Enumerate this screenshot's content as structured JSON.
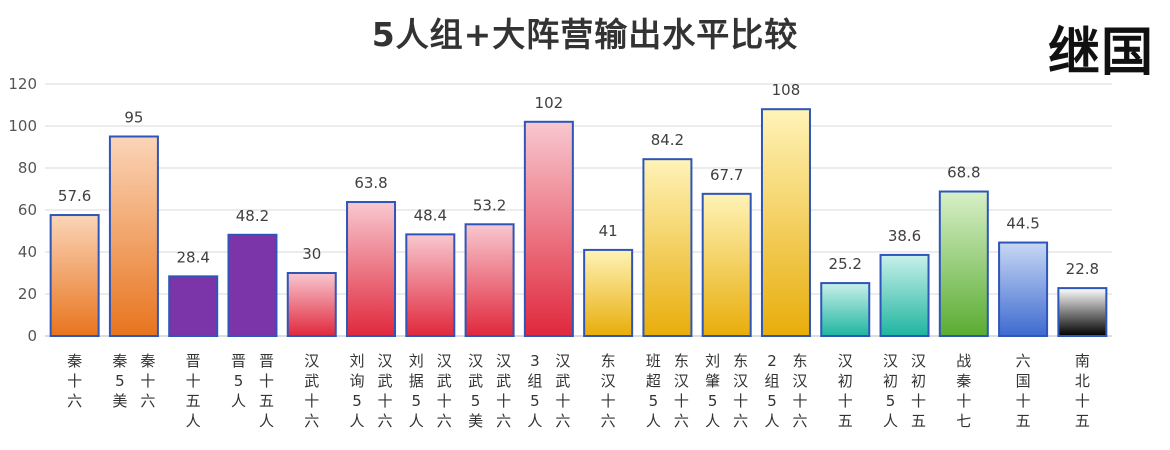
{
  "header": {
    "title": "5人组+大阵营输出水平比较",
    "corner_mark": "继国"
  },
  "chart_data": {
    "type": "bar",
    "title": "5人组+大阵营输出水平比较",
    "xlabel": "",
    "ylabel": "",
    "ylim": [
      0,
      120
    ],
    "yticks": [
      0,
      20,
      40,
      60,
      80,
      100,
      120
    ],
    "grid": true,
    "legend": "none",
    "categories": [
      [
        "秦十六"
      ],
      [
        "秦5美",
        "秦十六"
      ],
      [
        "晋十五人"
      ],
      [
        "晋5人",
        "晋十五人"
      ],
      [
        "汉武十六"
      ],
      [
        "刘询5人",
        "汉武十六"
      ],
      [
        "刘据5人",
        "汉武十六"
      ],
      [
        "汉武5美",
        "汉武十六"
      ],
      [
        "3组5人",
        "汉武十六"
      ],
      [
        "东汉十六"
      ],
      [
        "班超5人",
        "东汉十六"
      ],
      [
        "刘肇5人",
        "东汉十六"
      ],
      [
        "2组5人",
        "东汉十六"
      ],
      [
        "汉初十五"
      ],
      [
        "汉初5人",
        "汉初十五"
      ],
      [
        "战秦十七"
      ],
      [
        "六国十五"
      ],
      [
        "南北十五"
      ]
    ],
    "values": [
      57.6,
      95,
      28.4,
      48.2,
      30,
      63.8,
      48.4,
      53.2,
      102,
      41,
      84.2,
      67.7,
      108,
      25.2,
      38.6,
      68.8,
      44.5,
      22.8
    ],
    "bar_colors": [
      [
        "#fbd5b8",
        "#e8741e"
      ],
      [
        "#fbd5b8",
        "#e8741e"
      ],
      [
        "#7b35a8",
        "#7b35a8"
      ],
      [
        "#7b35a8",
        "#7b35a8"
      ],
      [
        "#f8c8d0",
        "#e0283c"
      ],
      [
        "#f8c8d0",
        "#e0283c"
      ],
      [
        "#f8c8d0",
        "#e0283c"
      ],
      [
        "#f8c8d0",
        "#e0283c"
      ],
      [
        "#f8c8d0",
        "#e0283c"
      ],
      [
        "#fff3b8",
        "#e8ad0a"
      ],
      [
        "#fff3b8",
        "#e8ad0a"
      ],
      [
        "#fff3b8",
        "#e8ad0a"
      ],
      [
        "#fff3b8",
        "#e8ad0a"
      ],
      [
        "#c8f0ea",
        "#1fb5a0"
      ],
      [
        "#c8f0ea",
        "#1fb5a0"
      ],
      [
        "#d8f0c8",
        "#5aac32"
      ],
      [
        "#c8d8f4",
        "#3e6ad0"
      ],
      [
        "#ffffff",
        "#000000"
      ]
    ],
    "bar_border": "#2e55b8"
  }
}
